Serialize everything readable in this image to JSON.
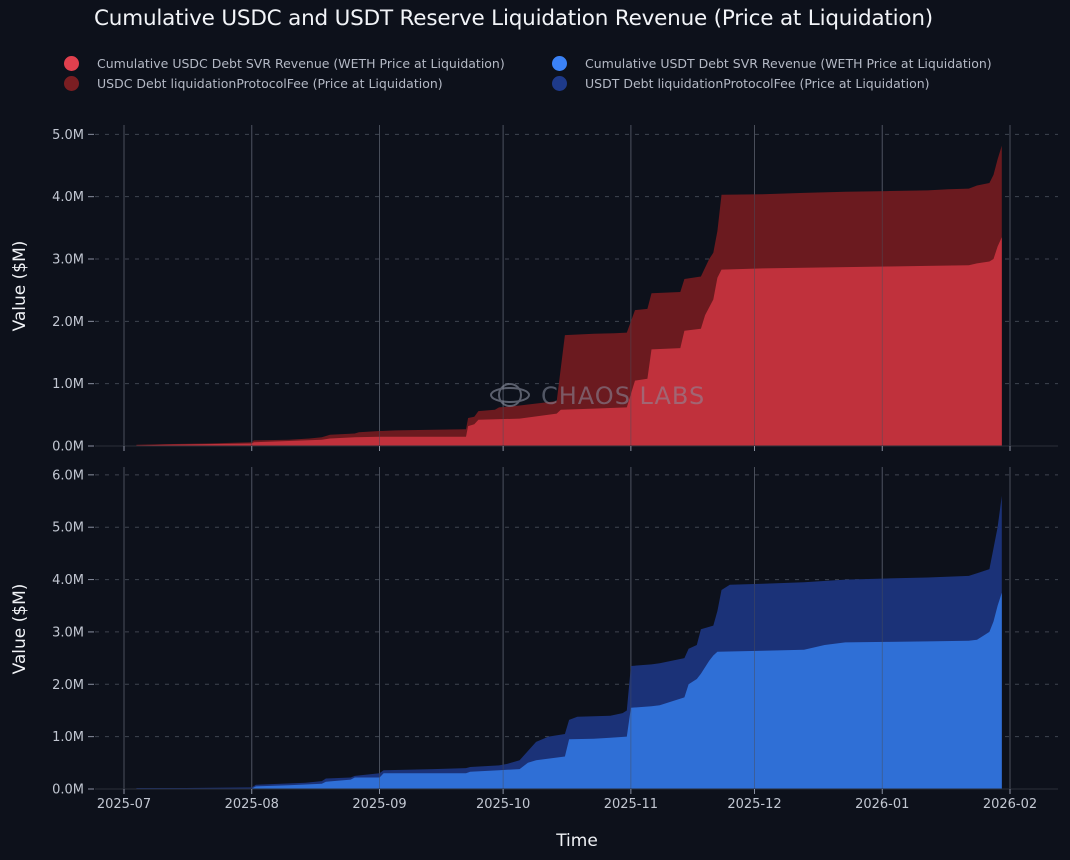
{
  "chart_data": {
    "type": "area",
    "title": "Cumulative USDC and USDT Reserve Liquidation Revenue (Price at Liquidation)",
    "xlabel": "Time",
    "x_ticks": [
      "2025-07",
      "2025-08",
      "2025-09",
      "2025-10",
      "2025-11",
      "2025-12",
      "2026-01",
      "2026-02"
    ],
    "x_range_days": [
      0,
      215
    ],
    "watermark": "CHAOS LABS",
    "legend": [
      {
        "label": "Cumulative USDC Debt SVR Revenue (WETH Price at Liquidation)",
        "color": "#e0404e"
      },
      {
        "label": "USDC Debt liquidationProtocolFee (Price at Liquidation)",
        "color": "#7a1e22"
      },
      {
        "label": "Cumulative USDT Debt SVR Revenue (WETH Price at Liquidation)",
        "color": "#3b82f6"
      },
      {
        "label": "USDT Debt liquidationProtocolFee (Price at Liquidation)",
        "color": "#1e3a8a"
      }
    ],
    "panels": [
      {
        "ylabel": "Value ($M)",
        "ylim": [
          0,
          5.15
        ],
        "yticks": [
          0,
          1,
          2,
          3,
          4,
          5
        ],
        "ytick_labels": [
          "0.0M",
          "1.0M",
          "2.0M",
          "3.0M",
          "4.0M",
          "5.0M"
        ],
        "series": [
          {
            "name": "USDC Debt liquidationProtocolFee (Price at Liquidation)",
            "color": "#6b1a1f",
            "points": [
              [
                3,
                0.02
              ],
              [
                10,
                0.03
              ],
              [
                20,
                0.04
              ],
              [
                31,
                0.06
              ],
              [
                31.5,
                0.09
              ],
              [
                40,
                0.1
              ],
              [
                45,
                0.12
              ],
              [
                48,
                0.14
              ],
              [
                50,
                0.18
              ],
              [
                56,
                0.2
              ],
              [
                57,
                0.22
              ],
              [
                62,
                0.24
              ],
              [
                66,
                0.25
              ],
              [
                75,
                0.26
              ],
              [
                83,
                0.27
              ],
              [
                83.5,
                0.45
              ],
              [
                85,
                0.47
              ],
              [
                86,
                0.56
              ],
              [
                90,
                0.58
              ],
              [
                91,
                0.62
              ],
              [
                96,
                0.65
              ],
              [
                105,
                0.72
              ],
              [
                107,
                1.78
              ],
              [
                114,
                1.8
              ],
              [
                119,
                1.81
              ],
              [
                122,
                1.82
              ],
              [
                124,
                2.18
              ],
              [
                127,
                2.2
              ],
              [
                128,
                2.45
              ],
              [
                135,
                2.47
              ],
              [
                136,
                2.68
              ],
              [
                140,
                2.72
              ],
              [
                142,
                3.0
              ],
              [
                143,
                3.1
              ],
              [
                144,
                3.45
              ],
              [
                145,
                4.03
              ],
              [
                155,
                4.04
              ],
              [
                165,
                4.06
              ],
              [
                175,
                4.08
              ],
              [
                185,
                4.09
              ],
              [
                195,
                4.1
              ],
              [
                200,
                4.12
              ],
              [
                205,
                4.13
              ],
              [
                207,
                4.18
              ],
              [
                210,
                4.22
              ],
              [
                211,
                4.35
              ],
              [
                212,
                4.6
              ],
              [
                213,
                4.82
              ]
            ]
          },
          {
            "name": "Cumulative USDC Debt SVR Revenue (WETH Price at Liquidation)",
            "color": "#c0313c",
            "points": [
              [
                3,
                0.01
              ],
              [
                10,
                0.02
              ],
              [
                20,
                0.03
              ],
              [
                31,
                0.04
              ],
              [
                31.5,
                0.06
              ],
              [
                40,
                0.08
              ],
              [
                48,
                0.1
              ],
              [
                50,
                0.12
              ],
              [
                56,
                0.14
              ],
              [
                62,
                0.15
              ],
              [
                75,
                0.15
              ],
              [
                83,
                0.15
              ],
              [
                83.5,
                0.32
              ],
              [
                85,
                0.35
              ],
              [
                86,
                0.42
              ],
              [
                96,
                0.44
              ],
              [
                105,
                0.52
              ],
              [
                106,
                0.58
              ],
              [
                114,
                0.6
              ],
              [
                122,
                0.62
              ],
              [
                124,
                1.05
              ],
              [
                127,
                1.08
              ],
              [
                128,
                1.55
              ],
              [
                135,
                1.57
              ],
              [
                136,
                1.85
              ],
              [
                140,
                1.88
              ],
              [
                141,
                2.1
              ],
              [
                143,
                2.35
              ],
              [
                144,
                2.7
              ],
              [
                145,
                2.83
              ],
              [
                155,
                2.85
              ],
              [
                165,
                2.86
              ],
              [
                175,
                2.87
              ],
              [
                185,
                2.88
              ],
              [
                195,
                2.89
              ],
              [
                205,
                2.9
              ],
              [
                207,
                2.93
              ],
              [
                210,
                2.96
              ],
              [
                211,
                3.0
              ],
              [
                212,
                3.2
              ],
              [
                213,
                3.35
              ]
            ]
          }
        ]
      },
      {
        "ylabel": "Value ($M)",
        "ylim": [
          0,
          6.15
        ],
        "yticks": [
          0,
          1,
          2,
          3,
          4,
          5,
          6
        ],
        "ytick_labels": [
          "0.0M",
          "1.0M",
          "2.0M",
          "3.0M",
          "4.0M",
          "5.0M",
          "6.0M"
        ],
        "series": [
          {
            "name": "USDT Debt liquidationProtocolFee (Price at Liquidation)",
            "color": "#1b3278",
            "points": [
              [
                3,
                0.02
              ],
              [
                15,
                0.02
              ],
              [
                31,
                0.03
              ],
              [
                32,
                0.08
              ],
              [
                38,
                0.1
              ],
              [
                44,
                0.12
              ],
              [
                48,
                0.15
              ],
              [
                49,
                0.2
              ],
              [
                55,
                0.22
              ],
              [
                56,
                0.25
              ],
              [
                62,
                0.3
              ],
              [
                63,
                0.36
              ],
              [
                75,
                0.38
              ],
              [
                83,
                0.4
              ],
              [
                84,
                0.42
              ],
              [
                91,
                0.45
              ],
              [
                93,
                0.48
              ],
              [
                96,
                0.55
              ],
              [
                100,
                0.9
              ],
              [
                103,
                1.0
              ],
              [
                107,
                1.05
              ],
              [
                108,
                1.32
              ],
              [
                110,
                1.38
              ],
              [
                114,
                1.39
              ],
              [
                118,
                1.4
              ],
              [
                121,
                1.45
              ],
              [
                122,
                1.5
              ],
              [
                123,
                2.35
              ],
              [
                128,
                2.38
              ],
              [
                130,
                2.4
              ],
              [
                136,
                2.5
              ],
              [
                137,
                2.68
              ],
              [
                139,
                2.75
              ],
              [
                140,
                3.05
              ],
              [
                143,
                3.12
              ],
              [
                144,
                3.4
              ],
              [
                145,
                3.8
              ],
              [
                147,
                3.9
              ],
              [
                155,
                3.92
              ],
              [
                165,
                3.95
              ],
              [
                175,
                4.0
              ],
              [
                185,
                4.02
              ],
              [
                195,
                4.04
              ],
              [
                205,
                4.07
              ],
              [
                207,
                4.12
              ],
              [
                210,
                4.2
              ],
              [
                211,
                4.6
              ],
              [
                212,
                5.0
              ],
              [
                213,
                5.6
              ]
            ]
          },
          {
            "name": "Cumulative USDT Debt SVR Revenue (WETH Price at Liquidation)",
            "color": "#2f6fd6",
            "points": [
              [
                3,
                0.01
              ],
              [
                20,
                0.01
              ],
              [
                31,
                0.01
              ],
              [
                32,
                0.05
              ],
              [
                40,
                0.07
              ],
              [
                48,
                0.1
              ],
              [
                49,
                0.14
              ],
              [
                55,
                0.18
              ],
              [
                56,
                0.22
              ],
              [
                62,
                0.22
              ],
              [
                63,
                0.3
              ],
              [
                75,
                0.3
              ],
              [
                83,
                0.3
              ],
              [
                84,
                0.33
              ],
              [
                91,
                0.36
              ],
              [
                96,
                0.38
              ],
              [
                98,
                0.5
              ],
              [
                100,
                0.55
              ],
              [
                107,
                0.62
              ],
              [
                108,
                0.95
              ],
              [
                114,
                0.96
              ],
              [
                118,
                0.98
              ],
              [
                122,
                1.0
              ],
              [
                123,
                1.55
              ],
              [
                128,
                1.58
              ],
              [
                130,
                1.6
              ],
              [
                136,
                1.75
              ],
              [
                137,
                2.0
              ],
              [
                139,
                2.1
              ],
              [
                140,
                2.2
              ],
              [
                142,
                2.45
              ],
              [
                143,
                2.55
              ],
              [
                144,
                2.62
              ],
              [
                155,
                2.64
              ],
              [
                165,
                2.66
              ],
              [
                170,
                2.75
              ],
              [
                175,
                2.8
              ],
              [
                185,
                2.81
              ],
              [
                195,
                2.82
              ],
              [
                205,
                2.83
              ],
              [
                207,
                2.85
              ],
              [
                210,
                3.0
              ],
              [
                211,
                3.2
              ],
              [
                212,
                3.5
              ],
              [
                213,
                3.75
              ]
            ]
          }
        ]
      }
    ]
  }
}
